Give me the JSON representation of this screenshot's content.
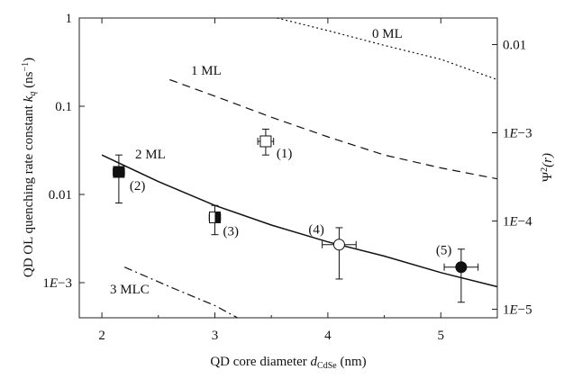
{
  "chart_data": {
    "type": "scatter",
    "xlabel": "QD core diameter ",
    "xlabel_sub": "CdSe",
    "xlabel_unit": " (nm)",
    "xlabel_symbol": "d",
    "ylabel": "QD OL quenching rate constant ",
    "ylabel_symbol": "k",
    "ylabel_sub": "q",
    "ylabel_unit": " (ns",
    "ylabel_unit_exp": "−1",
    "ylabel_unit_close": ")",
    "y2label": "Ψ",
    "y2label_exp": "2",
    "y2label_arg": "(r)",
    "xlim": [
      1.8,
      5.5
    ],
    "ylim": [
      0.0004,
      1
    ],
    "yscale": "log",
    "y2lim": [
      8e-06,
      0.02
    ],
    "y2scale": "log",
    "x_ticks": [
      {
        "v": 2,
        "label": "2"
      },
      {
        "v": 3,
        "label": "3"
      },
      {
        "v": 4,
        "label": "4"
      },
      {
        "v": 5,
        "label": "5"
      }
    ],
    "y_ticks": [
      {
        "v": 1,
        "label": "1"
      },
      {
        "v": 0.1,
        "label": "0.1"
      },
      {
        "v": 0.01,
        "label": "0.01"
      },
      {
        "v": 0.001,
        "label": "1E−3"
      }
    ],
    "y2_ticks": [
      {
        "v": 0.01,
        "label": "0.01"
      },
      {
        "v": 0.001,
        "label": "1E−3"
      },
      {
        "v": 0.0001,
        "label": "1E−4"
      },
      {
        "v": 1e-05,
        "label": "1E−5"
      }
    ],
    "grid": false,
    "curves": [
      {
        "label": "0 ML",
        "style": "dotted",
        "x": [
          3.55,
          4.0,
          4.5,
          5.0,
          5.5
        ],
        "y": [
          1.0,
          0.72,
          0.49,
          0.34,
          0.2
        ]
      },
      {
        "label": "1 ML",
        "style": "dashed",
        "x": [
          2.6,
          3.0,
          3.5,
          4.0,
          4.5,
          5.0,
          5.5
        ],
        "y": [
          0.2,
          0.13,
          0.075,
          0.045,
          0.028,
          0.02,
          0.015
        ]
      },
      {
        "label": "2 ML",
        "style": "solid",
        "x": [
          2.0,
          2.5,
          3.0,
          3.5,
          4.0,
          4.5,
          5.0,
          5.5
        ],
        "y": [
          0.028,
          0.014,
          0.0075,
          0.0045,
          0.0029,
          0.002,
          0.0013,
          0.0009
        ]
      },
      {
        "label": "3 MLC",
        "style": "dashdot",
        "x": [
          2.2,
          2.6,
          3.0,
          3.2
        ],
        "y": [
          0.0015,
          0.0009,
          0.00055,
          0.0004
        ]
      }
    ],
    "points": [
      {
        "label": "(1)",
        "x": 3.45,
        "y": 0.04,
        "xerr": 0.07,
        "yerr_low": 0.028,
        "yerr_high": 0.055,
        "marker": "square-open"
      },
      {
        "label": "(2)",
        "x": 2.15,
        "y": 0.018,
        "xerr": 0.05,
        "yerr_low": 0.008,
        "yerr_high": 0.028,
        "marker": "square-filled"
      },
      {
        "label": "(3)",
        "x": 3.0,
        "y": 0.0055,
        "xerr": 0.05,
        "yerr_low": 0.0035,
        "yerr_high": 0.0075,
        "marker": "square-half"
      },
      {
        "label": "(4)",
        "x": 4.1,
        "y": 0.0027,
        "xerr": 0.15,
        "yerr_low": 0.0011,
        "yerr_high": 0.0042,
        "marker": "circle-open"
      },
      {
        "label": "(5)",
        "x": 5.18,
        "y": 0.0015,
        "xerr": 0.15,
        "yerr_low": 0.0006,
        "yerr_high": 0.0024,
        "marker": "circle-filled"
      }
    ]
  }
}
